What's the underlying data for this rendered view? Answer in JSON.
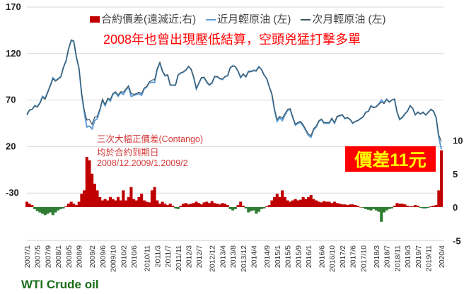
{
  "chart_data": {
    "type": "line+bar",
    "legend": [
      "合約價差(遠減近;右)",
      "近月輕原油 (左)",
      "次月輕原油 (左)"
    ],
    "legend_placement": "top",
    "title": "2008年也曾出現壓低結算，空頭兇猛打擊多單",
    "left_axis": {
      "ticks": [
        170,
        120,
        70,
        20,
        -30
      ],
      "range": [
        -80,
        170
      ]
    },
    "right_axis": {
      "ticks": [
        10,
        5,
        0,
        -5
      ],
      "range": [
        -5,
        15
      ]
    },
    "x_tick_labels": [
      "2007/1",
      "2007/5",
      "2007/9",
      "2008/1",
      "2008/5",
      "2008/9",
      "2009/2",
      "2009/6",
      "2009/10",
      "2010/2",
      "2010/6",
      "2010/11",
      "2011/3",
      "2011/7",
      "2011/11",
      "2012/3",
      "2012/7",
      "2012/12",
      "2013/4",
      "2013/8",
      "2013/12",
      "2014/4",
      "2014/9",
      "2015/1",
      "2015/5",
      "2015/9",
      "2016/1",
      "2016/6",
      "2016/10",
      "2017/2",
      "2017/6",
      "2017/10",
      "2018/3",
      "2018/7",
      "2018/11",
      "2019/3",
      "2019/7",
      "2019/11",
      "2020/4"
    ],
    "near_month": [
      54,
      59,
      60,
      64,
      63,
      67,
      74,
      72,
      79,
      86,
      94,
      91,
      93,
      95,
      105,
      112,
      125,
      134,
      133,
      116,
      104,
      76,
      57,
      41,
      42,
      39,
      48,
      50,
      59,
      70,
      64,
      71,
      69,
      76,
      78,
      74,
      78,
      76,
      81,
      84,
      74,
      75,
      76,
      77,
      75,
      82,
      84,
      89,
      89,
      89,
      103,
      110,
      101,
      96,
      97,
      86,
      86,
      86,
      97,
      99,
      100,
      102,
      106,
      103,
      94,
      82,
      88,
      94,
      94,
      89,
      86,
      88,
      95,
      95,
      93,
      92,
      95,
      96,
      105,
      107,
      106,
      101,
      94,
      98,
      95,
      101,
      101,
      102,
      102,
      106,
      103,
      97,
      93,
      84,
      76,
      59,
      47,
      51,
      48,
      54,
      59,
      60,
      51,
      43,
      45,
      46,
      42,
      37,
      32,
      30,
      38,
      41,
      47,
      49,
      45,
      45,
      45,
      50,
      45,
      52,
      53,
      54,
      50,
      51,
      49,
      45,
      47,
      48,
      50,
      52,
      57,
      58,
      64,
      62,
      63,
      66,
      70,
      67,
      71,
      68,
      70,
      71,
      57,
      49,
      51,
      55,
      58,
      64,
      61,
      54,
      57,
      55,
      57,
      54,
      57,
      60,
      58,
      51,
      30,
      17
    ],
    "spread": [
      0.8,
      0.5,
      0.3,
      -0.3,
      -0.6,
      -0.8,
      -1.0,
      -1.2,
      -1.0,
      -0.8,
      -1.2,
      -0.8,
      -0.5,
      -0.3,
      -0.2,
      0.1,
      0.5,
      0.8,
      0.5,
      0.3,
      0.8,
      2.0,
      2.5,
      7.5,
      7.0,
      5.0,
      3.5,
      2.5,
      1.5,
      1.0,
      1.2,
      1.0,
      1.5,
      1.2,
      1.0,
      1.5,
      1.0,
      2.5,
      1.0,
      1.5,
      3.0,
      1.2,
      1.0,
      1.5,
      2.0,
      1.0,
      0.8,
      0.7,
      2.5,
      3.0,
      1.0,
      0.5,
      0.8,
      0.5,
      0.3,
      0.5,
      0.2,
      -0.2,
      -0.3,
      0.2,
      0.5,
      0.6,
      0.4,
      0.5,
      0.6,
      0.8,
      0.6,
      0.4,
      0.7,
      0.8,
      0.6,
      0.9,
      0.6,
      0.5,
      0.4,
      0.6,
      0.5,
      0.3,
      -0.3,
      -0.5,
      -0.3,
      0.3,
      0.8,
      0.2,
      -0.2,
      -0.8,
      -0.6,
      -0.5,
      -1.0,
      -0.7,
      -0.3,
      -0.2,
      0.1,
      0.3,
      1.0,
      1.5,
      2.0,
      1.5,
      2.5,
      1.5,
      1.0,
      0.8,
      1.0,
      1.2,
      1.0,
      1.1,
      1.5,
      1.2,
      1.5,
      1.8,
      1.2,
      1.0,
      0.8,
      0.7,
      0.9,
      0.8,
      0.8,
      0.6,
      0.8,
      0.6,
      0.5,
      0.4,
      0.4,
      0.3,
      0.4,
      0.4,
      0.3,
      0.2,
      0.0,
      -0.1,
      -0.3,
      -0.4,
      -0.5,
      -0.3,
      -0.5,
      -0.7,
      -2.2,
      -0.8,
      -0.5,
      -0.3,
      -0.2,
      0.2,
      0.6,
      0.5,
      0.5,
      0.4,
      0.2,
      0.1,
      0.1,
      0.3,
      0.2,
      -0.1,
      -0.2,
      -0.2,
      -0.1,
      0.1,
      0.2,
      0.3,
      2.5,
      8.5
    ],
    "colors": {
      "spread_positive": "#c00000",
      "spread_negative": "#2e7d32",
      "near": "#5b9bd5",
      "next": "#3a5560",
      "grid": "#d9d9d9"
    },
    "annotations": {
      "contango_line1": "三次大幅正價差(Contango)",
      "contango_line2": "均於合約到期日",
      "contango_line3": "2008/12.2009/1.2009/2",
      "badge": "價差11元"
    },
    "footer": "WTI Crude oil"
  }
}
